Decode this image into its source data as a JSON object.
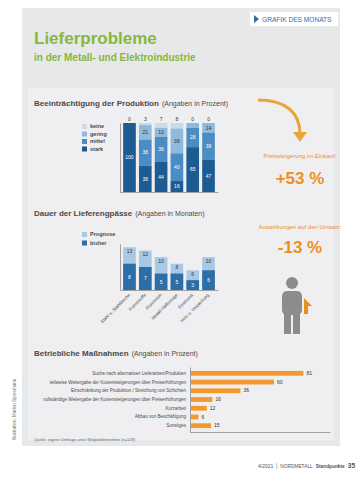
{
  "header": {
    "title": "Lieferprobleme",
    "subtitle": "in der Metall- und Elektroindustrie",
    "tag": "GRAFIK DES MONATS"
  },
  "chart_data": [
    {
      "type": "bar",
      "title": "Beeinträchtigung der Produktion",
      "subtitle": "(Angaben in Prozent)",
      "categories": [
        null,
        null,
        null,
        null,
        null,
        null
      ],
      "series": [
        {
          "name": "keine",
          "color": "#c9dcec",
          "values": [
            0,
            3,
            7,
            8,
            0,
            0
          ]
        },
        {
          "name": "gering",
          "color": "#8dbadd",
          "values": [
            0,
            21,
            13,
            36,
            7,
            14
          ]
        },
        {
          "name": "mittel",
          "color": "#4a8cc4",
          "values": [
            0,
            38,
            36,
            40,
            28,
            39
          ]
        },
        {
          "name": "stark",
          "color": "#1d5b93",
          "values": [
            100,
            38,
            44,
            16,
            65,
            47
          ]
        }
      ],
      "ylim": [
        0,
        100
      ],
      "stacked": true,
      "data_labels": true,
      "tick_labels": false,
      "legend": "top-left",
      "annotations": [
        "Preissteigerung im Einkauf:",
        "+53 %",
        "Auswirkungen auf den Umsatz:",
        "-13 %"
      ]
    },
    {
      "type": "bar",
      "title": "Dauer der Lieferengpässe",
      "subtitle": "(Angaben in Monaten)",
      "categories": [
        "Stahl u. Stahlbleche",
        "Kunststoffe",
        "Aluminium",
        "Metall-Halbzeuge",
        "Elektronik",
        "Holz u. Verpackung"
      ],
      "series": [
        {
          "name": "Prognose",
          "color": "#a8c9e5",
          "values": [
            13,
            12,
            10,
            8,
            6,
            10
          ]
        },
        {
          "name": "bisher",
          "color": "#2c6ea7",
          "values": [
            8,
            7,
            5,
            5,
            3,
            6
          ]
        }
      ],
      "ylim": [
        0,
        14
      ],
      "stacked": false,
      "data_labels": true,
      "tick_labels": "x",
      "legend": "top-left"
    },
    {
      "type": "bar",
      "orientation": "horizontal",
      "title": "Betriebliche Maßnahmen",
      "subtitle": "(Angaben in Prozent)",
      "categories": [
        "Suche nach alternativen Lieferanten/Produkten",
        "teilweise Weitergabe der Kostensteigerungen über Preiserhöhungen",
        "Einschränkung der Produktion / Streichung von Schichten",
        "vollständige Weitergabe der Kostensteigerungen über Preiserhöhungen",
        "Kurzarbeit",
        "Abbau von Beschäftigung",
        "Sonstiges"
      ],
      "values": [
        81,
        60,
        36,
        16,
        12,
        6,
        15
      ],
      "color": "#f29a2e",
      "xlim": [
        0,
        100
      ],
      "data_labels": true,
      "tick_labels": "y"
    }
  ],
  "source": "Quelle: eigene Umfrage unter Mitgliedsbetrieben (n=128)",
  "credit": "Illustration: Marion Spreemann",
  "footer": {
    "issue": "4/2021",
    "brand": "NORDMETALL",
    "magazine": "Standpunkte",
    "page": "35"
  }
}
